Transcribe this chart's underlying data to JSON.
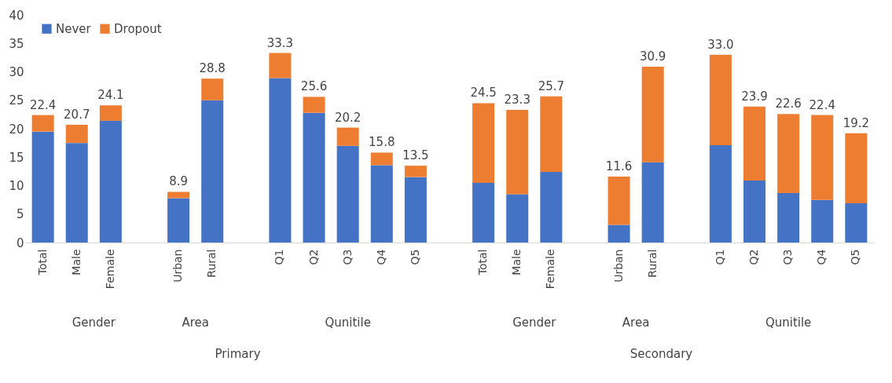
{
  "chart_data": {
    "type": "bar",
    "stacked": true,
    "categories": [
      "Total",
      "Male",
      "Female",
      null,
      "Urban",
      "Rural",
      null,
      "Q1",
      "Q2",
      "Q3",
      "Q4",
      "Q5",
      null,
      "Total",
      "Male",
      "Female",
      null,
      "Urban",
      "Rural",
      null,
      "Q1",
      "Q2",
      "Q3",
      "Q4",
      "Q5"
    ],
    "series": [
      {
        "name": "Never",
        "color": "#4472c4",
        "values": [
          19.5,
          17.5,
          21.4,
          null,
          7.8,
          25.0,
          null,
          28.9,
          22.8,
          17.0,
          13.6,
          11.5,
          null,
          10.5,
          8.5,
          12.4,
          null,
          3.1,
          14.1,
          null,
          17.1,
          10.9,
          8.7,
          7.5,
          6.9
        ]
      },
      {
        "name": "Dropout",
        "color": "#ed7d31",
        "values": [
          2.9,
          3.2,
          2.7,
          null,
          1.1,
          3.8,
          null,
          4.4,
          2.8,
          3.2,
          2.2,
          2.0,
          null,
          14.0,
          14.8,
          13.3,
          null,
          8.5,
          16.8,
          null,
          15.9,
          13.0,
          13.9,
          14.9,
          12.3
        ]
      }
    ],
    "totals": [
      "22.4",
      "20.7",
      "24.1",
      null,
      "8.9",
      "28.8",
      null,
      "33.3",
      "25.6",
      "20.2",
      "15.8",
      "13.5",
      null,
      "24.5",
      "23.3",
      "25.7",
      null,
      "11.6",
      "30.9",
      null,
      "33.0",
      "23.9",
      "22.6",
      "22.4",
      "19.2"
    ],
    "annotations": [
      "Gender",
      "Area",
      "Qunitile",
      "Primary",
      "Gender",
      "Area",
      "Qunitile",
      "Secondary"
    ],
    "ylim": [
      0,
      40
    ],
    "yticks": [
      0,
      5,
      10,
      15,
      20,
      25,
      30,
      35,
      40
    ],
    "grid": false,
    "legend": "top left"
  }
}
